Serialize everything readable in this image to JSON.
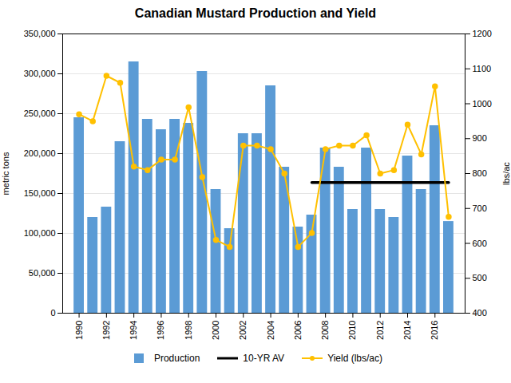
{
  "chart_data": {
    "type": "bar",
    "title": "Canadian Mustard Production and Yield",
    "x": [
      1990,
      1991,
      1992,
      1993,
      1994,
      1995,
      1996,
      1997,
      1998,
      1999,
      2000,
      2001,
      2002,
      2003,
      2004,
      2005,
      2006,
      2007,
      2008,
      2009,
      2010,
      2011,
      2012,
      2013,
      2014,
      2015,
      2016,
      2017
    ],
    "xlim": [
      1988.8,
      2018.2
    ],
    "xticks": [
      1990,
      1992,
      1994,
      1996,
      1998,
      2000,
      2002,
      2004,
      2006,
      2008,
      2010,
      2012,
      2014,
      2016
    ],
    "ylabel": "metric tons",
    "y2label": "lbs/ac",
    "ylim": [
      0,
      350000
    ],
    "yticks": [
      0,
      {
        "value": 50000,
        "label": "50,000"
      },
      {
        "value": 100000,
        "label": "100,000"
      },
      {
        "value": 150000,
        "label": "150,000"
      },
      {
        "value": 200000,
        "label": "200,000"
      },
      {
        "value": 250000,
        "label": "250,000"
      },
      {
        "value": 300000,
        "label": "300,000"
      },
      {
        "value": 350000,
        "label": "350,000"
      }
    ],
    "y2lim": [
      400,
      1200
    ],
    "y2ticks": [
      400,
      500,
      600,
      700,
      800,
      900,
      1000,
      1100,
      1200
    ],
    "grid": true,
    "legend": "bottom",
    "series": [
      {
        "name": "Production",
        "type": "bar",
        "color": "#5B9BD5",
        "values": [
          245000,
          120000,
          133000,
          215000,
          315000,
          243000,
          230000,
          243000,
          238000,
          303000,
          155000,
          106000,
          225000,
          225000,
          285000,
          183000,
          108000,
          123000,
          207000,
          183000,
          130000,
          207000,
          130000,
          120000,
          197000,
          155000,
          235000,
          114900
        ]
      },
      {
        "name": "10-YR AV",
        "type": "line",
        "color": "#000000",
        "values": [
          null,
          null,
          null,
          null,
          null,
          null,
          null,
          null,
          null,
          null,
          null,
          null,
          null,
          null,
          null,
          null,
          null,
          163630,
          163630,
          163630,
          163630,
          163630,
          163630,
          163630,
          163630,
          163630,
          163630,
          163630
        ]
      },
      {
        "name": "Yield (lbs/ac)",
        "type": "line",
        "axis": "y2",
        "color": "#FFC000",
        "marker": "o",
        "values": [
          970,
          950,
          1080,
          1060,
          820,
          810,
          840,
          840,
          990,
          790,
          610,
          590,
          880,
          880,
          870,
          800,
          590,
          630,
          870,
          880,
          880,
          910,
          800,
          810,
          940,
          855,
          1050,
          676
        ]
      }
    ]
  }
}
